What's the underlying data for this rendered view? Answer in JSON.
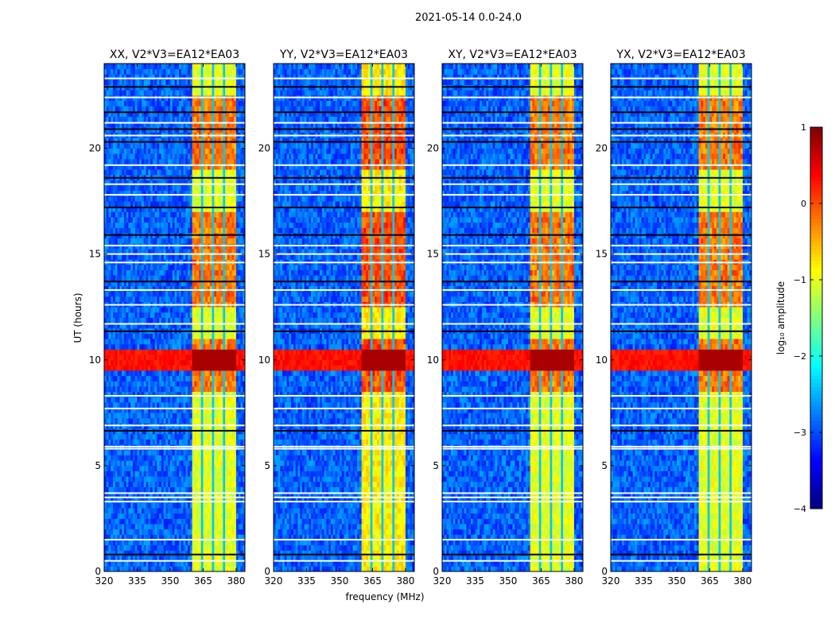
{
  "chart_data": {
    "type": "heatmap",
    "suptitle": "2021-05-14 0.0-24.0",
    "xlabel": "frequency (MHz)",
    "ylabel": "UT (hours)",
    "xlim": [
      320,
      384
    ],
    "ylim": [
      0,
      24
    ],
    "xticks": [
      320,
      335,
      350,
      365,
      380
    ],
    "yticks": [
      0,
      5,
      10,
      15,
      20
    ],
    "panels": [
      {
        "title": "XX, V2*V3=EA12*EA03",
        "band_level": -1.0
      },
      {
        "title": "YY, V2*V3=EA12*EA03",
        "band_level": -0.8
      },
      {
        "title": "XY, V2*V3=EA12*EA03",
        "band_level": -1.0
      },
      {
        "title": "YX, V2*V3=EA12*EA03",
        "band_level": -1.0
      }
    ],
    "model": {
      "background_level": -2.9,
      "rfi_band_mhz": [
        360,
        380
      ],
      "band_gaps_mhz": [
        364.5,
        369.5,
        374.5
      ],
      "strong_rfi_hours": [
        9.5,
        10.5
      ],
      "strong_rfi_level": 0.3,
      "band_hot_hours": [
        [
          12.5,
          17
        ],
        [
          19,
          22.5
        ],
        [
          8.5,
          11
        ]
      ],
      "flagged_white_hours": [
        0.5,
        1.5,
        3.3,
        3.5,
        3.7,
        5.8,
        5.9,
        6.9,
        7.7,
        8.3,
        11.7,
        12.6,
        13.3,
        14.6,
        15.0,
        15.4,
        17.8,
        18.3,
        19.2,
        20.6,
        21.2,
        22.4,
        23.3
      ],
      "flagged_black_hours": [
        0.8,
        6.65,
        11.35,
        13.7,
        15.9,
        17.2,
        18.6,
        20.3,
        20.9,
        21.7,
        22.9
      ]
    },
    "colorbar": {
      "label": "log₁₀ amplitude",
      "range": [
        -4,
        1
      ],
      "ticks": [
        "1",
        "0",
        "−1",
        "−2",
        "−3",
        "−4"
      ],
      "colormap": "jet"
    }
  }
}
